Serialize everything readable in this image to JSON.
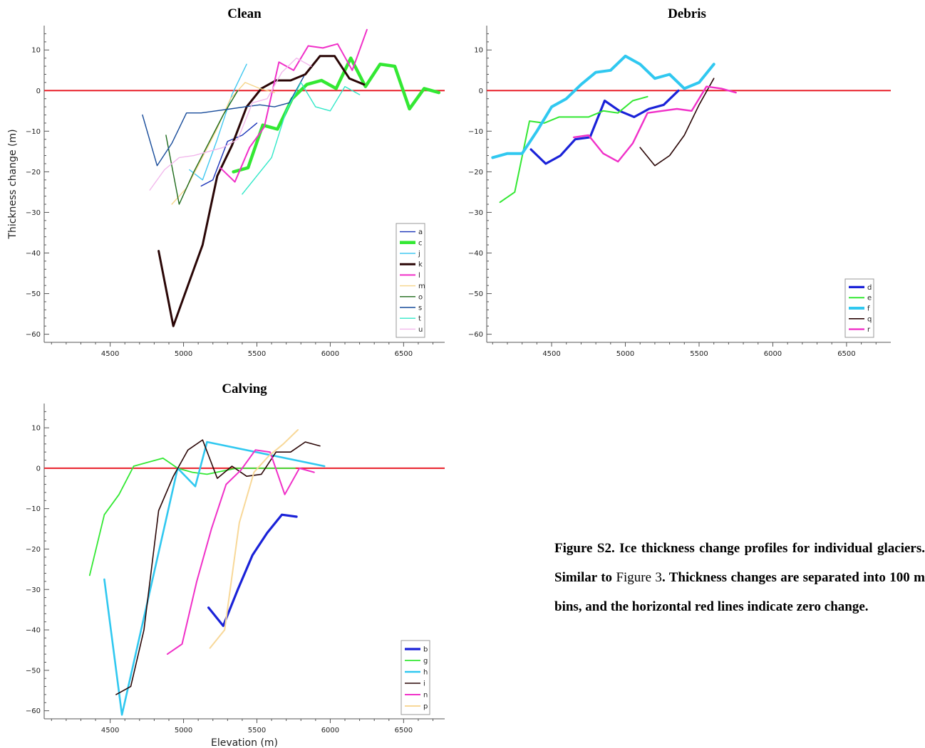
{
  "caption": {
    "part1": "Figure S2. Ice thickness change profiles for individual glaciers. Similar to ",
    "ref": "Figure 3",
    "part2": ". Thickness changes are separated into 100 m bins, and the horizontal red lines indicate zero change."
  },
  "chart_data": [
    {
      "type": "line",
      "title": "Clean",
      "xlabel": "",
      "ylabel": "Thickness change (m)",
      "xlim": [
        4050,
        6780
      ],
      "ylim": [
        -62,
        16
      ],
      "xticks": [
        4500,
        5000,
        5500,
        6000,
        6500
      ],
      "yticks": [
        10,
        0,
        -10,
        -20,
        -30,
        -40,
        -50,
        -60
      ],
      "zero_line_color": "#e8202a",
      "legend_position": "bottom-right",
      "series": [
        {
          "name": "a",
          "color": "#1832b8",
          "width": 1.4,
          "x": [
            5120,
            5200,
            5300,
            5400,
            5500
          ],
          "y": [
            -23.5,
            -22,
            -12.5,
            -11,
            -8
          ]
        },
        {
          "name": "c",
          "color": "#33e833",
          "width": 4.5,
          "x": [
            5340,
            5440,
            5540,
            5640,
            5740,
            5840,
            5940,
            6040,
            6140,
            6240,
            6340,
            6440,
            6540,
            6640,
            6740
          ],
          "y": [
            -20,
            -19,
            -8.5,
            -9.5,
            -2,
            1.5,
            2.5,
            0.5,
            8,
            1,
            6.5,
            6,
            -4.5,
            0.5,
            -0.5
          ]
        },
        {
          "name": "j",
          "color": "#40c8f0",
          "width": 1.4,
          "x": [
            5040,
            5130,
            5230,
            5330,
            5430
          ],
          "y": [
            -19.5,
            -22,
            -12,
            -1,
            6.5
          ]
        },
        {
          "name": "k",
          "color": "#2a0606",
          "width": 3.0,
          "x": [
            4830,
            4930,
            5030,
            5130,
            5230,
            5330,
            5430,
            5530,
            5630,
            5730,
            5830,
            5930,
            6030,
            6130,
            6230
          ],
          "y": [
            -39.5,
            -58,
            -48,
            -38,
            -21,
            -13.5,
            -4,
            0.5,
            2.5,
            2.5,
            4,
            8.5,
            8.5,
            3,
            1.5
          ]
        },
        {
          "name": "l",
          "color": "#f030c8",
          "width": 2.0,
          "x": [
            5250,
            5350,
            5450,
            5550,
            5650,
            5750,
            5850,
            5950,
            6050,
            6150,
            6250
          ],
          "y": [
            -19,
            -22.5,
            -14,
            -9,
            7,
            5,
            11,
            10.5,
            11.5,
            5,
            15
          ]
        },
        {
          "name": "m",
          "color": "#f5d58a",
          "width": 1.4,
          "x": [
            4920,
            5020,
            5120,
            5220,
            5320,
            5420,
            5520,
            5620
          ],
          "y": [
            -28,
            -24,
            -17,
            -10,
            -2,
            2,
            0.5,
            -0.5
          ]
        },
        {
          "name": "o",
          "color": "#1d6a1a",
          "width": 1.4,
          "x": [
            4880,
            4970,
            5070,
            5170,
            5270,
            5370
          ],
          "y": [
            -11,
            -28,
            -20,
            -13,
            -6,
            0
          ]
        },
        {
          "name": "s",
          "color": "#174b9a",
          "width": 1.4,
          "x": [
            4720,
            4820,
            4920,
            5020,
            5120,
            5220,
            5320,
            5420,
            5520,
            5620,
            5720,
            5820
          ],
          "y": [
            -6,
            -18.5,
            -13,
            -5.5,
            -5.5,
            -5,
            -4.5,
            -4,
            -3.5,
            -4,
            -3,
            3.5
          ]
        },
        {
          "name": "t",
          "color": "#30e8c8",
          "width": 1.4,
          "x": [
            5400,
            5500,
            5600,
            5700,
            5800,
            5900,
            6000,
            6100,
            6200
          ],
          "y": [
            -25.5,
            -21,
            -16.5,
            -5,
            2,
            -4,
            -5,
            1,
            -1
          ]
        },
        {
          "name": "u",
          "color": "#f2b8ec",
          "width": 1.4,
          "x": [
            4770,
            4870,
            4970,
            5070,
            5170,
            5270,
            5370,
            5470,
            5570,
            5670,
            5770,
            5870
          ],
          "y": [
            -24.5,
            -19.5,
            -16.5,
            -16,
            -15,
            -14,
            -12,
            -3,
            -2,
            4.5,
            8,
            6
          ]
        }
      ]
    },
    {
      "type": "line",
      "title": "Debris",
      "xlabel": "",
      "ylabel": "",
      "xlim": [
        4060,
        6800
      ],
      "ylim": [
        -62,
        16
      ],
      "xticks": [
        4500,
        5000,
        5500,
        6000,
        6500
      ],
      "yticks": [
        10,
        0,
        -10,
        -20,
        -30,
        -40,
        -50,
        -60
      ],
      "zero_line_color": "#e8202a",
      "legend_position": "bottom-right",
      "series": [
        {
          "name": "d",
          "color": "#1a22d8",
          "width": 3.2,
          "x": [
            4360,
            4460,
            4560,
            4660,
            4760,
            4860,
            4960,
            5060,
            5160,
            5260,
            5360
          ],
          "y": [
            -14.5,
            -18,
            -16,
            -12,
            -11.5,
            -2.5,
            -5,
            -6.5,
            -4.5,
            -3.5,
            0
          ]
        },
        {
          "name": "e",
          "color": "#33e833",
          "width": 2.0,
          "x": [
            4150,
            4250,
            4350,
            4450,
            4550,
            4650,
            4750,
            4850,
            4950,
            5050,
            5150
          ],
          "y": [
            -27.5,
            -25,
            -7.5,
            -8,
            -6.5,
            -6.5,
            -6.5,
            -5,
            -5.5,
            -2.5,
            -1.5
          ]
        },
        {
          "name": "f",
          "color": "#30c8f0",
          "width": 4.0,
          "x": [
            4100,
            4200,
            4300,
            4400,
            4500,
            4600,
            4700,
            4800,
            4900,
            5000,
            5100,
            5200,
            5300,
            5400,
            5500,
            5600
          ],
          "y": [
            -16.5,
            -15.5,
            -15.5,
            -10,
            -4,
            -2,
            1.5,
            4.5,
            5,
            8.5,
            6.5,
            3,
            4,
            0.5,
            2,
            6.5
          ]
        },
        {
          "name": "q",
          "color": "#2a0606",
          "width": 1.6,
          "x": [
            5100,
            5200,
            5300,
            5400,
            5500,
            5600
          ],
          "y": [
            -14,
            -18.5,
            -16,
            -11,
            -3.5,
            3
          ]
        },
        {
          "name": "r",
          "color": "#f030c8",
          "width": 2.4,
          "x": [
            4650,
            4750,
            4850,
            4950,
            5050,
            5150,
            5250,
            5350,
            5450,
            5550,
            5650,
            5750
          ],
          "y": [
            -11.5,
            -11,
            -15.5,
            -17.5,
            -13,
            -5.5,
            -5,
            -4.5,
            -5,
            1,
            0.5,
            -0.5
          ]
        }
      ]
    },
    {
      "type": "line",
      "title": "Calving",
      "xlabel": "Elevation (m)",
      "ylabel": "",
      "xlim": [
        4050,
        6780
      ],
      "ylim": [
        -62,
        16
      ],
      "xticks": [
        4500,
        5000,
        5500,
        6000,
        6500
      ],
      "yticks": [
        10,
        0,
        -10,
        -20,
        -30,
        -40,
        -50,
        -60
      ],
      "zero_line_color": "#e8202a",
      "legend_position": "bottom-right",
      "series": [
        {
          "name": "b",
          "color": "#1a22d8",
          "width": 3.2,
          "x": [
            5170,
            5270,
            5370,
            5470,
            5570,
            5670,
            5770
          ],
          "y": [
            -34.5,
            -39,
            -30,
            -21.5,
            -16,
            -11.5,
            -12
          ]
        },
        {
          "name": "g",
          "color": "#33e833",
          "width": 1.8,
          "x": [
            4360,
            4460,
            4560,
            4660,
            4860,
            4960,
            5060,
            5160,
            5360,
            5560,
            5660,
            5760
          ],
          "y": [
            -26.5,
            -11.5,
            -6.5,
            0.5,
            2.5,
            0,
            -1,
            -1.5,
            0,
            0,
            0,
            0
          ]
        },
        {
          "name": "h",
          "color": "#30c8f0",
          "width": 2.6,
          "x": [
            4460,
            4580,
            4960,
            5080,
            5160,
            5960
          ],
          "y": [
            -27.5,
            -61,
            0,
            -4.5,
            6.5,
            0.5
          ]
        },
        {
          "name": "i",
          "color": "#2a0606",
          "width": 1.6,
          "x": [
            4540,
            4640,
            4730,
            4830,
            4930,
            5030,
            5130,
            5230,
            5330,
            5430,
            5530,
            5630,
            5730,
            5830,
            5930
          ],
          "y": [
            -56,
            -54,
            -40,
            -10.5,
            -2,
            4.5,
            7,
            -2.5,
            0.5,
            -2,
            -1.5,
            4,
            4,
            6.5,
            5.5
          ]
        },
        {
          "name": "n",
          "color": "#f030c8",
          "width": 2.0,
          "x": [
            4890,
            4990,
            5090,
            5190,
            5290,
            5390,
            5490,
            5590,
            5690,
            5790,
            5890
          ],
          "y": [
            -46,
            -43.5,
            -28,
            -15,
            -4,
            -0.5,
            4.5,
            4,
            -6.5,
            0,
            -1
          ]
        },
        {
          "name": "p",
          "color": "#f8d898",
          "width": 2.0,
          "x": [
            5180,
            5280,
            5380,
            5480,
            5580,
            5680,
            5780
          ],
          "y": [
            -44.5,
            -40,
            -13.5,
            -1,
            3,
            6,
            9.5
          ]
        }
      ]
    }
  ]
}
